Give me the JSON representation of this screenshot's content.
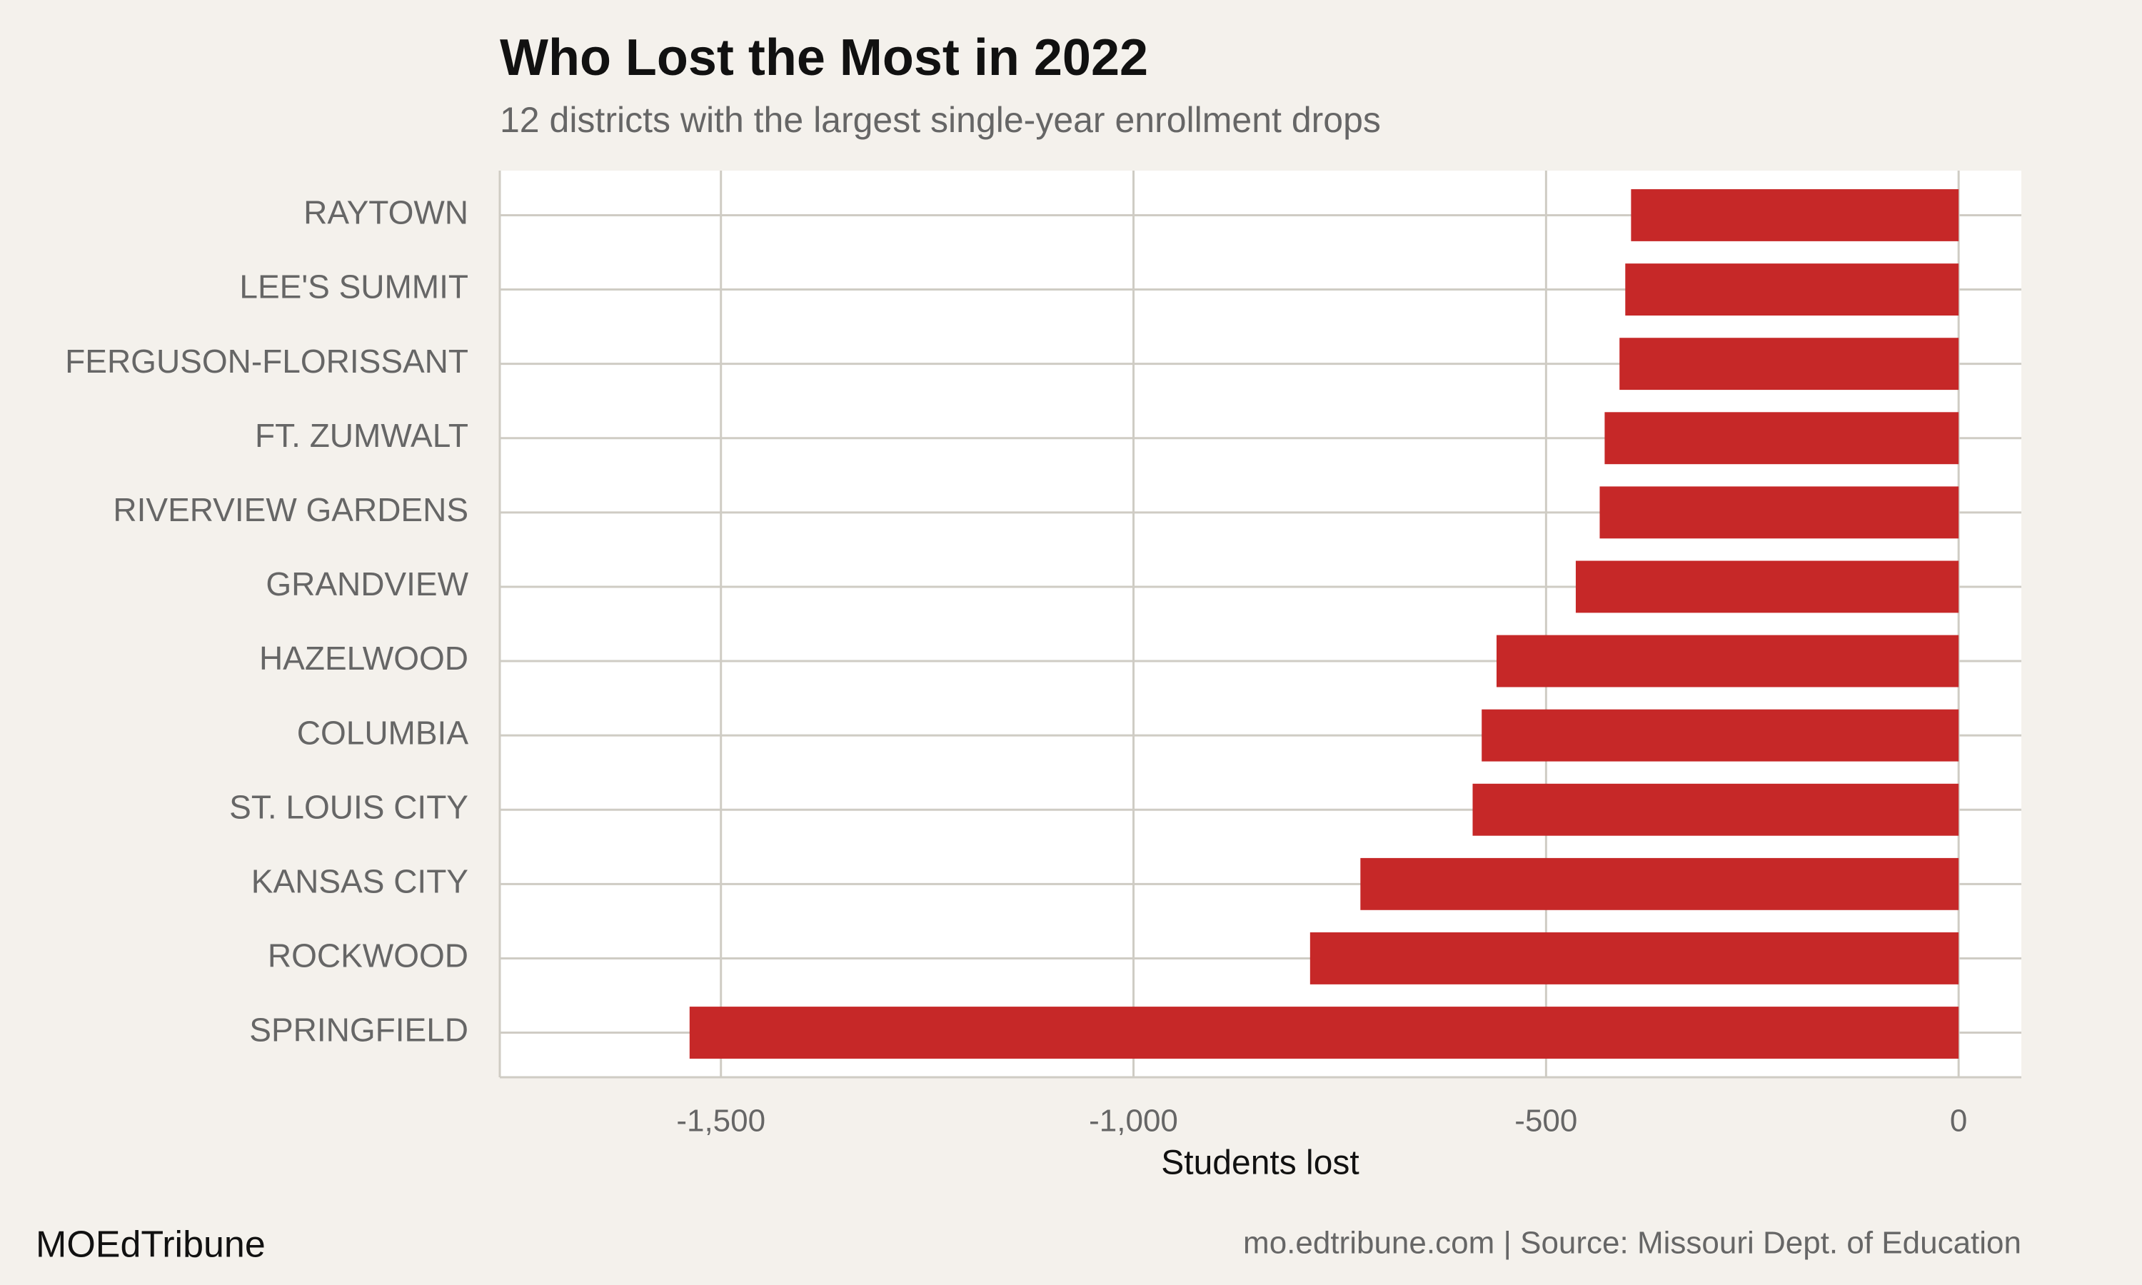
{
  "chart_data": {
    "type": "bar",
    "orientation": "horizontal",
    "title": "Who Lost the Most in 2022",
    "subtitle": "12 districts with the largest single-year enrollment drops",
    "x_label": "Students lost",
    "categories": [
      "RAYTOWN",
      "LEE'S SUMMIT",
      "FERGUSON-FLORISSANT",
      "FT. ZUMWALT",
      "RIVERVIEW GARDENS",
      "GRANDVIEW",
      "HAZELWOOD",
      "COLUMBIA",
      "ST. LOUIS CITY",
      "KANSAS CITY",
      "ROCKWOOD",
      "SPRINGFIELD"
    ],
    "values": [
      -397,
      -404,
      -411,
      -429,
      -435,
      -464,
      -560,
      -578,
      -589,
      -725,
      -786,
      -1538
    ],
    "color": "#c62828",
    "xlim": [
      -1768,
      76
    ],
    "xticks": [
      {
        "value": -1500,
        "label": "-1,500"
      },
      {
        "value": -1000,
        "label": "-1,000"
      },
      -500,
      0
    ],
    "grid": true,
    "brand": "MOEdTribune",
    "source": "mo.edtribune.com | Source: Missouri Dept. of Education"
  }
}
